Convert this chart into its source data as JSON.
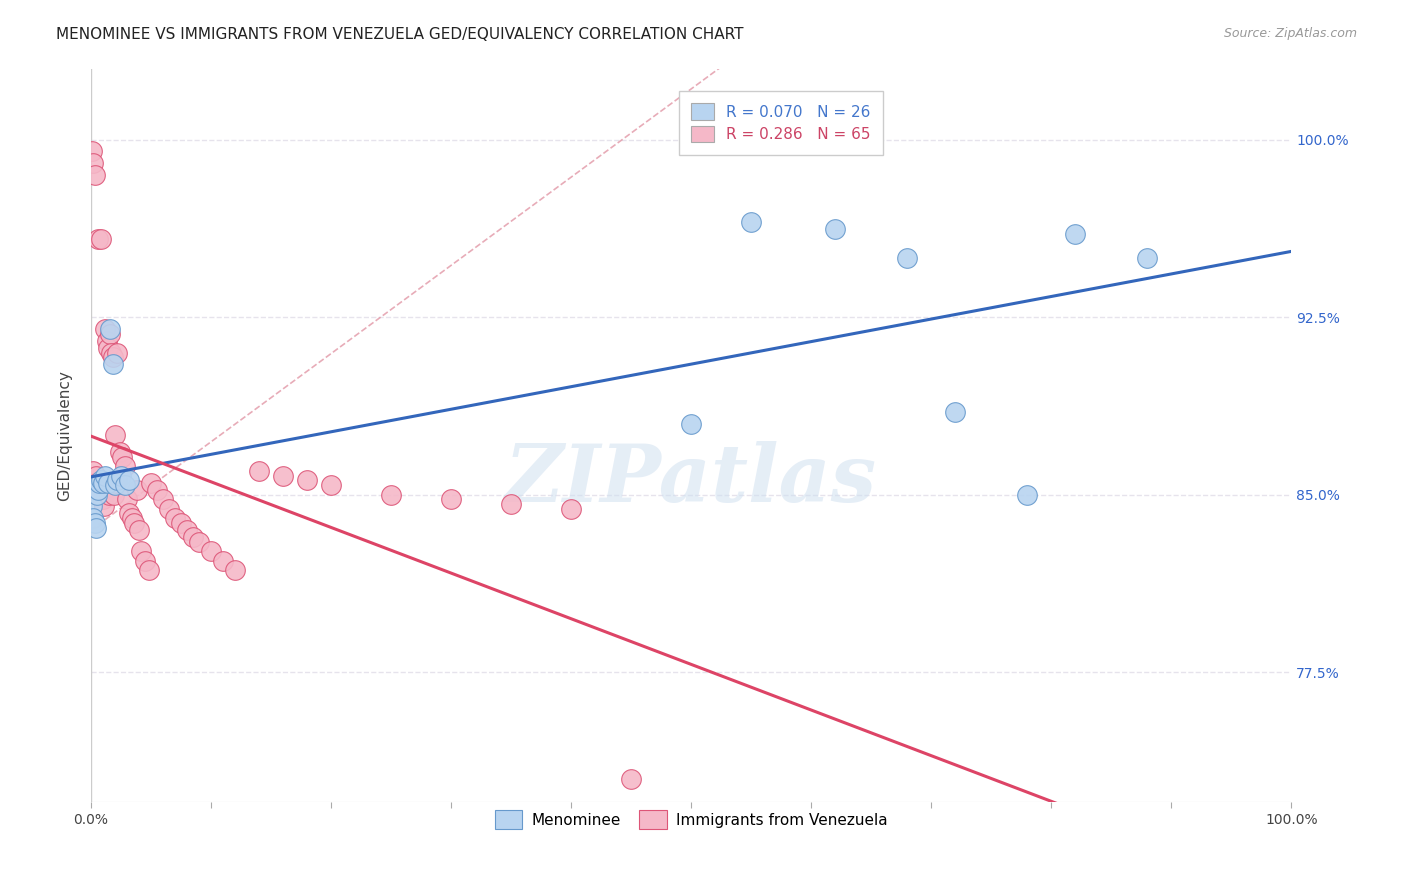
{
  "title": "MENOMINEE VS IMMIGRANTS FROM VENEZUELA GED/EQUIVALENCY CORRELATION CHART",
  "source": "Source: ZipAtlas.com",
  "ylabel": "GED/Equivalency",
  "ytick_labels": [
    "100.0%",
    "92.5%",
    "85.0%",
    "77.5%"
  ],
  "ytick_values": [
    1.0,
    0.925,
    0.85,
    0.775
  ],
  "legend_entries": [
    {
      "label": "R = 0.070   N = 26",
      "color": "#b8d4f0",
      "text_color": "#4477cc"
    },
    {
      "label": "R = 0.286   N = 65",
      "color": "#f5b8c8",
      "text_color": "#cc4466"
    }
  ],
  "legend_footer": [
    "Menominee",
    "Immigrants from Venezuela"
  ],
  "menominee": {
    "color": "#b8d4f0",
    "edge_color": "#6699cc",
    "x": [
      0.001,
      0.002,
      0.003,
      0.004,
      0.005,
      0.006,
      0.007,
      0.008,
      0.01,
      0.012,
      0.014,
      0.016,
      0.018,
      0.02,
      0.022,
      0.025,
      0.028,
      0.032,
      0.5,
      0.55,
      0.62,
      0.68,
      0.72,
      0.78,
      0.82,
      0.88
    ],
    "y": [
      0.845,
      0.84,
      0.838,
      0.836,
      0.85,
      0.852,
      0.855,
      0.856,
      0.855,
      0.858,
      0.855,
      0.92,
      0.905,
      0.854,
      0.856,
      0.858,
      0.854,
      0.856,
      0.88,
      0.965,
      0.962,
      0.95,
      0.885,
      0.85,
      0.96,
      0.95
    ]
  },
  "venezuela": {
    "color": "#f5b8c8",
    "edge_color": "#dd5577",
    "x": [
      0.001,
      0.001,
      0.002,
      0.002,
      0.003,
      0.003,
      0.004,
      0.004,
      0.005,
      0.005,
      0.006,
      0.006,
      0.007,
      0.007,
      0.008,
      0.008,
      0.009,
      0.009,
      0.01,
      0.01,
      0.011,
      0.012,
      0.013,
      0.014,
      0.015,
      0.016,
      0.017,
      0.018,
      0.019,
      0.02,
      0.021,
      0.022,
      0.024,
      0.026,
      0.028,
      0.03,
      0.032,
      0.034,
      0.036,
      0.038,
      0.04,
      0.042,
      0.045,
      0.048,
      0.05,
      0.055,
      0.06,
      0.065,
      0.07,
      0.075,
      0.08,
      0.085,
      0.09,
      0.1,
      0.11,
      0.12,
      0.14,
      0.16,
      0.18,
      0.2,
      0.25,
      0.3,
      0.35,
      0.4,
      0.45
    ],
    "y": [
      0.855,
      0.995,
      0.86,
      0.99,
      0.855,
      0.985,
      0.855,
      0.858,
      0.855,
      0.85,
      0.853,
      0.958,
      0.855,
      0.85,
      0.958,
      0.852,
      0.855,
      0.85,
      0.852,
      0.848,
      0.845,
      0.92,
      0.915,
      0.912,
      0.85,
      0.918,
      0.91,
      0.908,
      0.85,
      0.875,
      0.855,
      0.91,
      0.868,
      0.866,
      0.862,
      0.848,
      0.842,
      0.84,
      0.838,
      0.852,
      0.835,
      0.826,
      0.822,
      0.818,
      0.855,
      0.852,
      0.848,
      0.844,
      0.84,
      0.838,
      0.835,
      0.832,
      0.83,
      0.826,
      0.822,
      0.818,
      0.86,
      0.858,
      0.856,
      0.854,
      0.85,
      0.848,
      0.846,
      0.844,
      0.73
    ]
  },
  "background_color": "#ffffff",
  "grid_color": "#e0dde8",
  "watermark_text": "ZIPatlas",
  "watermark_color": "#d0e0f0",
  "trendline_blue_color": "#3366bb",
  "trendline_pink_color": "#dd4466",
  "refline_color": "#e090a0",
  "xmin": 0.0,
  "xmax": 1.0,
  "ymin": 0.72,
  "ymax": 1.03,
  "title_fontsize": 11,
  "source_fontsize": 9,
  "tick_fontsize": 10
}
